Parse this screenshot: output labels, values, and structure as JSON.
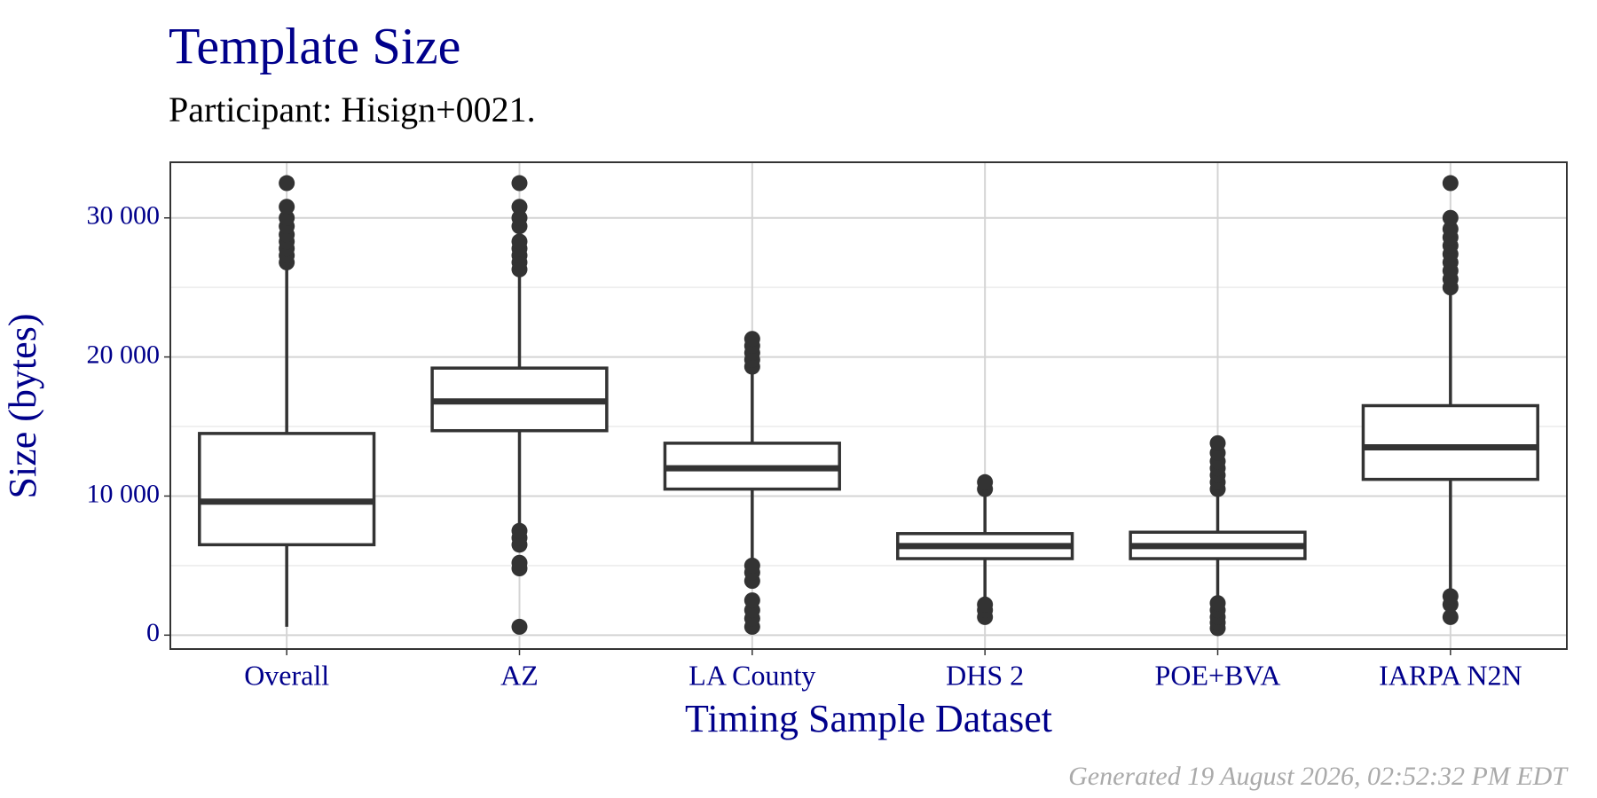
{
  "chart_data": {
    "type": "box",
    "title": "Template Size",
    "subtitle": "Participant: Hisign+0021.",
    "x_label": "Timing Sample Dataset",
    "y_label": "Size (bytes)",
    "caption": "Generated 19 August 2026, 02:52:32 PM EDT",
    "categories": [
      "Overall",
      "AZ",
      "LA County",
      "DHS 2",
      "POE+BVA",
      "IARPA N2N"
    ],
    "boxes": [
      {
        "whisker_low": 600,
        "q1": 6500,
        "median": 9600,
        "q3": 14500,
        "whisker_high": 26500,
        "outliers": [
          26800,
          27300,
          27800,
          28300,
          28800,
          29400,
          30000,
          30800,
          32500
        ]
      },
      {
        "whisker_low": 8000,
        "q1": 14700,
        "median": 16800,
        "q3": 19200,
        "whisker_high": 26000,
        "outliers": [
          600,
          4800,
          5200,
          6500,
          7000,
          7500,
          26300,
          26800,
          27300,
          27800,
          28300,
          29400,
          30000,
          30800,
          32500
        ]
      },
      {
        "whisker_low": 5300,
        "q1": 10500,
        "median": 12000,
        "q3": 13800,
        "whisker_high": 19000,
        "outliers": [
          600,
          1200,
          1800,
          2500,
          3900,
          4500,
          5000,
          19300,
          19800,
          20300,
          20800,
          21300
        ]
      },
      {
        "whisker_low": 2500,
        "q1": 5500,
        "median": 6400,
        "q3": 7300,
        "whisker_high": 10200,
        "outliers": [
          1300,
          1800,
          2200,
          10500,
          11000
        ]
      },
      {
        "whisker_low": 2600,
        "q1": 5500,
        "median": 6400,
        "q3": 7400,
        "whisker_high": 10200,
        "outliers": [
          500,
          900,
          1300,
          1800,
          2300,
          10500,
          11000,
          11500,
          12000,
          12500,
          13100,
          13800
        ]
      },
      {
        "whisker_low": 3000,
        "q1": 11200,
        "median": 13500,
        "q3": 16500,
        "whisker_high": 24800,
        "outliers": [
          1300,
          2200,
          2800,
          25000,
          25600,
          26200,
          26800,
          27400,
          28000,
          28600,
          29200,
          30000,
          32500
        ]
      }
    ],
    "color": "#333333",
    "ylim": [
      -1000,
      34000
    ],
    "yticks": [
      0,
      {
        "value": 10000,
        "label": "10 000"
      },
      {
        "value": 20000,
        "label": "20 000"
      },
      {
        "value": 30000,
        "label": "30 000"
      }
    ],
    "yminorticks": [
      5000,
      15000,
      25000
    ],
    "grid": true
  }
}
